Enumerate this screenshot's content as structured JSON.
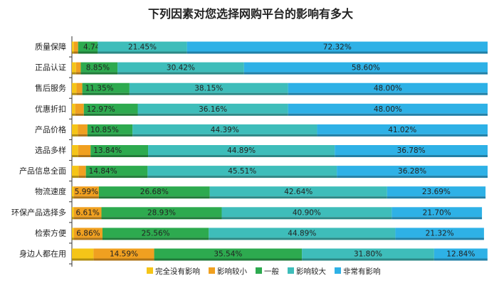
{
  "chart_data": {
    "type": "bar",
    "orientation": "horizontal",
    "stacked": true,
    "percent": true,
    "title": "下列因素对您选择网购平台的影响有多大",
    "xlim": [
      0,
      100
    ],
    "legend_position": "bottom",
    "categories": [
      "质量保障",
      "正品认证",
      "售后服务",
      "优惠折扣",
      "产品价格",
      "选品多样",
      "产品信息全面",
      "物流速度",
      "环保产品选择多",
      "检索方便",
      "身边人都在用"
    ],
    "series": [
      {
        "name": "完全没有影响",
        "color": "#F5C518",
        "values": [
          0.5,
          1.0,
          1.1,
          0.8,
          1.4,
          1.5,
          1.6,
          0.5,
          0.5,
          0.5,
          5.2
        ],
        "labels": [
          "",
          "",
          "",
          "",
          "",
          "",
          "",
          "",
          "",
          "",
          ""
        ]
      },
      {
        "name": "影响较小",
        "color": "#F0A020",
        "values": [
          0.99,
          1.13,
          1.4,
          2.07,
          2.34,
          2.99,
          1.77,
          5.99,
          6.61,
          6.86,
          14.59
        ],
        "labels": [
          "",
          "",
          "",
          "",
          "",
          "",
          "",
          "5.99%",
          "6.61%",
          "6.86%",
          "14.59%"
        ]
      },
      {
        "name": "一般",
        "color": "#2DAA4F",
        "values": [
          4.74,
          8.85,
          11.35,
          12.97,
          10.85,
          13.84,
          14.84,
          26.68,
          28.93,
          25.56,
          35.54
        ],
        "labels": [
          "4.74%",
          "8.85%",
          "11.35%",
          "12.97%",
          "10.85%",
          "13.84%",
          "14.84%",
          "26.68%",
          "28.93%",
          "25.56%",
          "35.54%"
        ]
      },
      {
        "name": "影响较大",
        "color": "#3EBDBA",
        "values": [
          21.45,
          30.42,
          38.15,
          36.16,
          44.39,
          44.89,
          45.51,
          42.64,
          40.9,
          44.89,
          31.8
        ],
        "labels": [
          "21.45%",
          "30.42%",
          "38.15%",
          "36.16%",
          "44.39%",
          "44.89%",
          "45.51%",
          "42.64%",
          "40.90%",
          "44.89%",
          "31.80%"
        ]
      },
      {
        "name": "非常有影响",
        "color": "#2EB1E6",
        "values": [
          72.32,
          58.6,
          48.0,
          48.0,
          41.02,
          36.78,
          36.28,
          23.69,
          21.7,
          21.32,
          12.84
        ],
        "labels": [
          "72.32%",
          "58.60%",
          "48.00%",
          "48.00%",
          "41.02%",
          "36.78%",
          "36.28%",
          "23.69%",
          "21.70%",
          "21.32%",
          "12.84%"
        ]
      }
    ]
  }
}
